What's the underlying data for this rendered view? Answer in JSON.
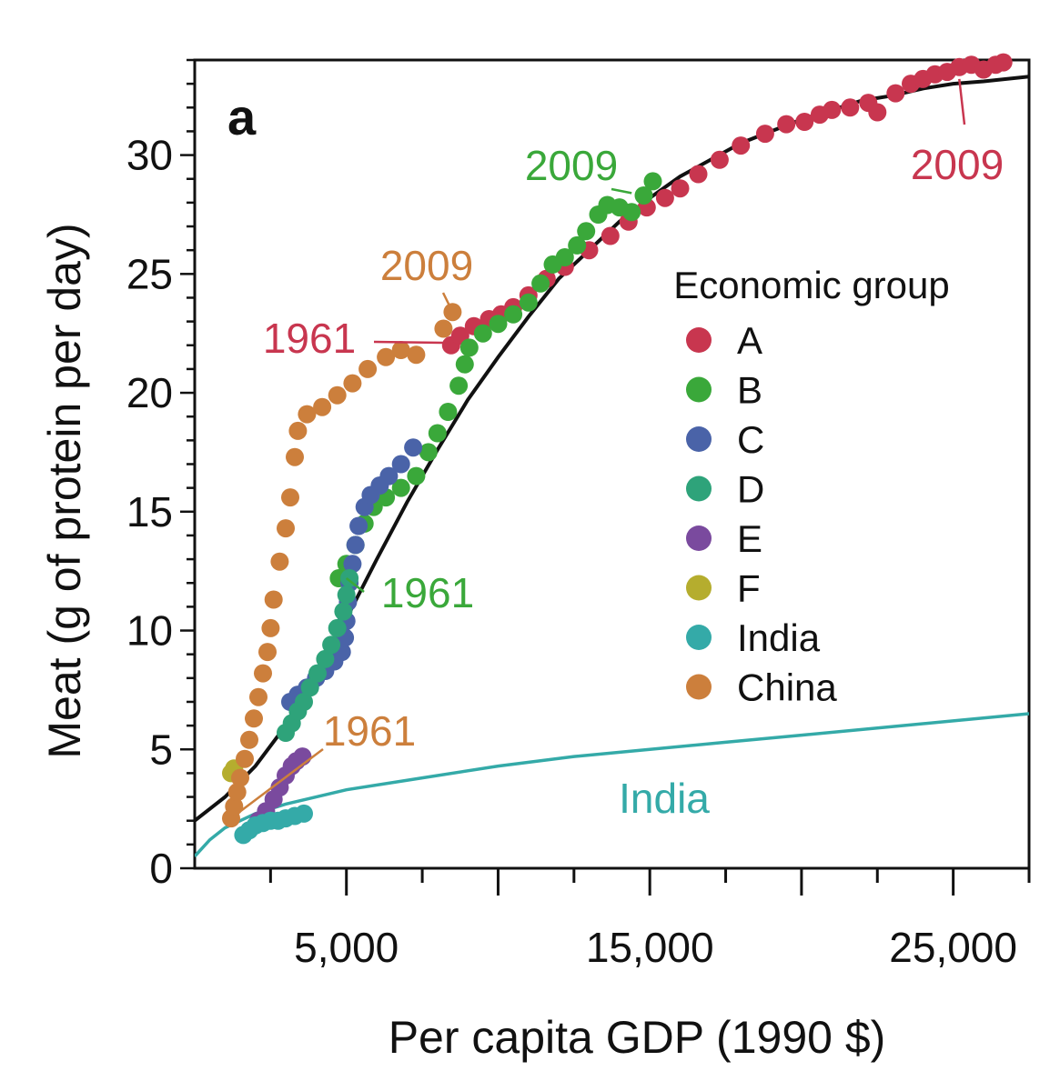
{
  "chart_data": {
    "type": "scatter",
    "panel_label": "a",
    "xlabel": "Per capita GDP (1990 $)",
    "ylabel": "Meat (g of protein per day)",
    "xlim": [
      0,
      27500
    ],
    "ylim": [
      0,
      34
    ],
    "x_ticks": [
      5000,
      15000,
      25000
    ],
    "x_tick_labels": [
      "5,000",
      "15,000",
      "25,000"
    ],
    "x_minor_step": 2500,
    "y_ticks": [
      0,
      5,
      10,
      15,
      20,
      25,
      30
    ],
    "y_tick_labels": [
      "0",
      "5",
      "10",
      "15",
      "20",
      "25",
      "30"
    ],
    "y_minor_step": 1,
    "grid": false,
    "legend": {
      "title": "Economic group",
      "placement": "right-middle",
      "entries": [
        {
          "name": "A",
          "color": "#c8364f"
        },
        {
          "name": "B",
          "color": "#3aa83a"
        },
        {
          "name": "C",
          "color": "#4a63a8"
        },
        {
          "name": "D",
          "color": "#2ea37a"
        },
        {
          "name": "E",
          "color": "#7a4a9e"
        },
        {
          "name": "F",
          "color": "#b5ad2e"
        },
        {
          "name": "India",
          "color": "#34aaa8"
        },
        {
          "name": "China",
          "color": "#cc7f3c"
        }
      ]
    },
    "series": [
      {
        "name": "A",
        "color": "#c8364f",
        "points": [
          [
            8450,
            22.0
          ],
          [
            8750,
            22.4
          ],
          [
            9200,
            22.8
          ],
          [
            9700,
            23.1
          ],
          [
            10100,
            23.3
          ],
          [
            10500,
            23.6
          ],
          [
            11000,
            24.1
          ],
          [
            11600,
            24.8
          ],
          [
            12200,
            25.3
          ],
          [
            13000,
            26.0
          ],
          [
            13700,
            26.6
          ],
          [
            14300,
            27.2
          ],
          [
            14900,
            27.8
          ],
          [
            15500,
            28.2
          ],
          [
            16000,
            28.6
          ],
          [
            16600,
            29.2
          ],
          [
            17300,
            29.8
          ],
          [
            18000,
            30.4
          ],
          [
            18800,
            30.9
          ],
          [
            19500,
            31.3
          ],
          [
            20100,
            31.4
          ],
          [
            20600,
            31.7
          ],
          [
            21000,
            31.9
          ],
          [
            21600,
            32.0
          ],
          [
            22200,
            32.2
          ],
          [
            22500,
            31.8
          ],
          [
            23100,
            32.6
          ],
          [
            23600,
            33.0
          ],
          [
            24000,
            33.2
          ],
          [
            24400,
            33.4
          ],
          [
            24800,
            33.5
          ],
          [
            25200,
            33.7
          ],
          [
            25600,
            33.8
          ],
          [
            26000,
            33.6
          ],
          [
            26400,
            33.8
          ],
          [
            26650,
            33.9
          ]
        ]
      },
      {
        "name": "B",
        "color": "#3aa83a",
        "points": [
          [
            4750,
            12.2
          ],
          [
            5000,
            12.8
          ],
          [
            5300,
            13.6
          ],
          [
            5600,
            14.5
          ],
          [
            5900,
            15.2
          ],
          [
            6300,
            15.6
          ],
          [
            6800,
            16.0
          ],
          [
            7300,
            16.5
          ],
          [
            7700,
            17.5
          ],
          [
            8000,
            18.3
          ],
          [
            8350,
            19.2
          ],
          [
            8700,
            20.3
          ],
          [
            8900,
            21.2
          ],
          [
            9050,
            21.9
          ],
          [
            9500,
            22.5
          ],
          [
            10000,
            22.9
          ],
          [
            10500,
            23.3
          ],
          [
            11000,
            23.8
          ],
          [
            11400,
            24.6
          ],
          [
            11800,
            25.4
          ],
          [
            12200,
            25.7
          ],
          [
            12600,
            26.2
          ],
          [
            12900,
            26.8
          ],
          [
            13300,
            27.5
          ],
          [
            13600,
            27.9
          ],
          [
            14000,
            27.8
          ],
          [
            14400,
            27.6
          ],
          [
            14800,
            28.3
          ],
          [
            15100,
            28.9
          ]
        ]
      },
      {
        "name": "C",
        "color": "#4a63a8",
        "points": [
          [
            3150,
            7.0
          ],
          [
            3400,
            7.3
          ],
          [
            3700,
            7.6
          ],
          [
            4000,
            8.0
          ],
          [
            4300,
            8.3
          ],
          [
            4600,
            8.7
          ],
          [
            4850,
            9.1
          ],
          [
            4950,
            9.7
          ],
          [
            5000,
            10.4
          ],
          [
            5050,
            11.2
          ],
          [
            5100,
            12.0
          ],
          [
            5200,
            12.8
          ],
          [
            5300,
            13.6
          ],
          [
            5400,
            14.4
          ],
          [
            5600,
            15.2
          ],
          [
            5800,
            15.7
          ],
          [
            6100,
            16.1
          ],
          [
            6400,
            16.5
          ],
          [
            6800,
            17.0
          ],
          [
            7200,
            17.7
          ]
        ]
      },
      {
        "name": "D",
        "color": "#2ea37a",
        "points": [
          [
            3000,
            5.7
          ],
          [
            3200,
            6.1
          ],
          [
            3400,
            6.6
          ],
          [
            3600,
            7.0
          ],
          [
            3800,
            7.6
          ],
          [
            4050,
            8.2
          ],
          [
            4300,
            8.8
          ],
          [
            4500,
            9.4
          ],
          [
            4700,
            10.1
          ],
          [
            4900,
            10.8
          ],
          [
            5000,
            11.5
          ],
          [
            5100,
            12.2
          ]
        ]
      },
      {
        "name": "E",
        "color": "#7a4a9e",
        "points": [
          [
            2100,
            2.0
          ],
          [
            2350,
            2.4
          ],
          [
            2600,
            2.9
          ],
          [
            2800,
            3.4
          ],
          [
            3000,
            3.9
          ],
          [
            3200,
            4.3
          ],
          [
            3350,
            4.5
          ],
          [
            3550,
            4.7
          ]
        ]
      },
      {
        "name": "F",
        "color": "#b5ad2e",
        "points": [
          [
            1200,
            4.0
          ],
          [
            1300,
            4.2
          ]
        ]
      },
      {
        "name": "India",
        "color": "#34aaa8",
        "points": [
          [
            1600,
            1.4
          ],
          [
            1800,
            1.6
          ],
          [
            2000,
            1.8
          ],
          [
            2250,
            1.9
          ],
          [
            2500,
            2.0
          ],
          [
            2750,
            2.0
          ],
          [
            3000,
            2.1
          ],
          [
            3300,
            2.2
          ],
          [
            3600,
            2.3
          ]
        ]
      },
      {
        "name": "China",
        "color": "#cc7f3c",
        "points": [
          [
            1200,
            2.1
          ],
          [
            1300,
            2.6
          ],
          [
            1400,
            3.2
          ],
          [
            1500,
            3.8
          ],
          [
            1650,
            4.6
          ],
          [
            1800,
            5.4
          ],
          [
            1950,
            6.3
          ],
          [
            2100,
            7.2
          ],
          [
            2250,
            8.2
          ],
          [
            2400,
            9.1
          ],
          [
            2500,
            10.1
          ],
          [
            2600,
            11.3
          ],
          [
            2800,
            12.9
          ],
          [
            3000,
            14.3
          ],
          [
            3150,
            15.6
          ],
          [
            3300,
            17.3
          ],
          [
            3400,
            18.4
          ],
          [
            3700,
            19.1
          ],
          [
            4200,
            19.4
          ],
          [
            4700,
            19.9
          ],
          [
            5200,
            20.4
          ],
          [
            5700,
            21.0
          ],
          [
            6300,
            21.5
          ],
          [
            6800,
            21.8
          ],
          [
            7300,
            21.6
          ],
          [
            8200,
            22.7
          ],
          [
            8500,
            23.4
          ]
        ]
      }
    ],
    "fit_curves": [
      {
        "name": "Economic group fit",
        "color": "#111111",
        "points": [
          [
            0,
            2.0
          ],
          [
            1000,
            3.0
          ],
          [
            2000,
            4.3
          ],
          [
            3000,
            6.0
          ],
          [
            4000,
            8.0
          ],
          [
            5000,
            10.5
          ],
          [
            6000,
            13.0
          ],
          [
            7000,
            15.4
          ],
          [
            8000,
            17.6
          ],
          [
            9000,
            19.7
          ],
          [
            10000,
            21.5
          ],
          [
            11000,
            23.2
          ],
          [
            12000,
            24.8
          ],
          [
            13000,
            26.0
          ],
          [
            14000,
            27.2
          ],
          [
            15000,
            28.2
          ],
          [
            16000,
            29.1
          ],
          [
            17000,
            29.8
          ],
          [
            18000,
            30.5
          ],
          [
            19000,
            31.0
          ],
          [
            20000,
            31.5
          ],
          [
            21000,
            31.9
          ],
          [
            22000,
            32.3
          ],
          [
            23000,
            32.5
          ],
          [
            24000,
            32.8
          ],
          [
            25000,
            33.0
          ],
          [
            26000,
            33.1
          ],
          [
            27500,
            33.3
          ]
        ]
      },
      {
        "name": "India",
        "color": "#34aaa8",
        "points": [
          [
            0,
            0.5
          ],
          [
            500,
            1.2
          ],
          [
            1000,
            1.7
          ],
          [
            1500,
            2.0
          ],
          [
            2000,
            2.3
          ],
          [
            3000,
            2.7
          ],
          [
            4000,
            3.0
          ],
          [
            5000,
            3.3
          ],
          [
            7500,
            3.8
          ],
          [
            10000,
            4.3
          ],
          [
            12500,
            4.7
          ],
          [
            15000,
            5.0
          ],
          [
            17500,
            5.3
          ],
          [
            20000,
            5.6
          ],
          [
            22500,
            5.9
          ],
          [
            25000,
            6.2
          ],
          [
            27500,
            6.5
          ]
        ]
      }
    ],
    "annotations": [
      {
        "text": "2009",
        "color": "#3aa83a",
        "target": [
          14400,
          28.4
        ]
      },
      {
        "text": "2009",
        "color": "#c8364f",
        "target": [
          25200,
          33.2
        ]
      },
      {
        "text": "2009",
        "color": "#cc7f3c",
        "target": [
          8500,
          23.4
        ]
      },
      {
        "text": "1961",
        "color": "#c8364f",
        "target": [
          8450,
          22.1
        ]
      },
      {
        "text": "1961",
        "color": "#3aa83a",
        "target": [
          5000,
          12.2
        ]
      },
      {
        "text": "1961",
        "color": "#cc7f3c",
        "target": [
          1300,
          2.2
        ]
      },
      {
        "text": "India",
        "color": "#34aaa8",
        "target": null
      }
    ]
  }
}
